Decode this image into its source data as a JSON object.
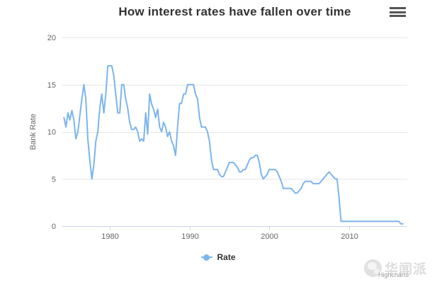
{
  "chart": {
    "title": "How interest rates have fallen over time",
    "legend_label": "Rate",
    "credits": "Highcharts",
    "menu_icon": "hamburger-icon",
    "colors": {
      "series": "#7cb5ec",
      "grid": "#e6e6e6",
      "axis_line": "#ccd6eb",
      "tick_label": "#666666",
      "axis_title": "#666666",
      "title_text": "#333333",
      "legend_text": "#333333",
      "credits_text": "#999999",
      "menu_icon_color": "#555555",
      "background": "#ffffff"
    }
  },
  "watermark": {
    "text": "华闻派"
  },
  "chart_data": {
    "type": "line",
    "title": "How interest rates have fallen over time",
    "xlabel": "",
    "ylabel": "Bank Rate",
    "series_name": "Rate",
    "legend_position": "bottom-center",
    "grid": true,
    "xlim": [
      1974.05,
      2017.3
    ],
    "ylim": [
      0,
      20
    ],
    "x_ticks": [
      1980,
      1990,
      2000,
      2010
    ],
    "y_ticks": [
      0,
      5,
      10,
      15,
      20
    ],
    "points": [
      [
        1974.25,
        11.5
      ],
      [
        1974.5,
        10.5
      ],
      [
        1974.75,
        12
      ],
      [
        1975,
        11.25
      ],
      [
        1975.25,
        12.25
      ],
      [
        1975.5,
        11.25
      ],
      [
        1975.75,
        9.25
      ],
      [
        1976,
        10
      ],
      [
        1976.25,
        11.75
      ],
      [
        1976.5,
        13.5
      ],
      [
        1976.75,
        15
      ],
      [
        1977,
        13.5
      ],
      [
        1977.25,
        9.25
      ],
      [
        1977.5,
        7
      ],
      [
        1977.75,
        5
      ],
      [
        1978,
        6.5
      ],
      [
        1978.25,
        9
      ],
      [
        1978.5,
        10
      ],
      [
        1978.75,
        12.5
      ],
      [
        1979,
        14
      ],
      [
        1979.25,
        12
      ],
      [
        1979.5,
        14
      ],
      [
        1979.75,
        17
      ],
      [
        1980,
        17
      ],
      [
        1980.25,
        17
      ],
      [
        1980.5,
        16
      ],
      [
        1980.75,
        14
      ],
      [
        1981,
        12
      ],
      [
        1981.25,
        12
      ],
      [
        1981.5,
        15
      ],
      [
        1981.75,
        15
      ],
      [
        1982,
        13.5
      ],
      [
        1982.25,
        12.5
      ],
      [
        1982.5,
        11
      ],
      [
        1982.75,
        10.25
      ],
      [
        1983,
        10.25
      ],
      [
        1983.25,
        10.5
      ],
      [
        1983.5,
        10
      ],
      [
        1983.75,
        9
      ],
      [
        1984,
        9.25
      ],
      [
        1984.25,
        9
      ],
      [
        1984.5,
        12
      ],
      [
        1984.75,
        9.75
      ],
      [
        1985,
        14
      ],
      [
        1985.25,
        12.9
      ],
      [
        1985.5,
        12.4
      ],
      [
        1985.75,
        11.5
      ],
      [
        1986,
        12.4
      ],
      [
        1986.25,
        10.5
      ],
      [
        1986.5,
        10
      ],
      [
        1986.75,
        11
      ],
      [
        1987,
        10.5
      ],
      [
        1987.25,
        9.5
      ],
      [
        1987.5,
        10
      ],
      [
        1987.75,
        9
      ],
      [
        1988,
        8.5
      ],
      [
        1988.25,
        7.5
      ],
      [
        1988.5,
        10.5
      ],
      [
        1988.75,
        13
      ],
      [
        1989,
        13
      ],
      [
        1989.25,
        14
      ],
      [
        1989.5,
        14
      ],
      [
        1989.75,
        15
      ],
      [
        1990,
        15
      ],
      [
        1990.25,
        15
      ],
      [
        1990.5,
        15
      ],
      [
        1990.75,
        14
      ],
      [
        1991,
        13.5
      ],
      [
        1991.25,
        11.5
      ],
      [
        1991.5,
        10.5
      ],
      [
        1991.75,
        10.5
      ],
      [
        1992,
        10.5
      ],
      [
        1992.25,
        10
      ],
      [
        1992.5,
        9
      ],
      [
        1992.75,
        7
      ],
      [
        1993,
        6
      ],
      [
        1993.25,
        6
      ],
      [
        1993.5,
        6
      ],
      [
        1993.75,
        5.5
      ],
      [
        1994,
        5.25
      ],
      [
        1994.25,
        5.25
      ],
      [
        1994.5,
        5.75
      ],
      [
        1994.75,
        6.25
      ],
      [
        1995,
        6.75
      ],
      [
        1995.25,
        6.75
      ],
      [
        1995.5,
        6.75
      ],
      [
        1995.75,
        6.5
      ],
      [
        1996,
        6.25
      ],
      [
        1996.25,
        5.75
      ],
      [
        1996.5,
        5.75
      ],
      [
        1996.75,
        6
      ],
      [
        1997,
        6
      ],
      [
        1997.25,
        6.5
      ],
      [
        1997.5,
        7
      ],
      [
        1997.75,
        7.25
      ],
      [
        1998,
        7.25
      ],
      [
        1998.25,
        7.5
      ],
      [
        1998.5,
        7.5
      ],
      [
        1998.75,
        6.75
      ],
      [
        1999,
        5.5
      ],
      [
        1999.25,
        5
      ],
      [
        1999.5,
        5.25
      ],
      [
        1999.75,
        5.5
      ],
      [
        2000,
        6
      ],
      [
        2000.25,
        6
      ],
      [
        2000.5,
        6
      ],
      [
        2000.75,
        6
      ],
      [
        2001,
        5.75
      ],
      [
        2001.25,
        5.25
      ],
      [
        2001.5,
        4.75
      ],
      [
        2001.75,
        4
      ],
      [
        2002,
        4
      ],
      [
        2002.25,
        4
      ],
      [
        2002.5,
        4
      ],
      [
        2002.75,
        4
      ],
      [
        2003,
        3.75
      ],
      [
        2003.25,
        3.5
      ],
      [
        2003.5,
        3.5
      ],
      [
        2003.75,
        3.75
      ],
      [
        2004,
        4
      ],
      [
        2004.25,
        4.5
      ],
      [
        2004.5,
        4.75
      ],
      [
        2004.75,
        4.75
      ],
      [
        2005,
        4.75
      ],
      [
        2005.25,
        4.75
      ],
      [
        2005.5,
        4.5
      ],
      [
        2005.75,
        4.5
      ],
      [
        2006,
        4.5
      ],
      [
        2006.25,
        4.5
      ],
      [
        2006.5,
        4.75
      ],
      [
        2006.75,
        5
      ],
      [
        2007,
        5.25
      ],
      [
        2007.25,
        5.5
      ],
      [
        2007.5,
        5.75
      ],
      [
        2007.75,
        5.5
      ],
      [
        2008,
        5.25
      ],
      [
        2008.25,
        5
      ],
      [
        2008.5,
        5
      ],
      [
        2008.75,
        3
      ],
      [
        2009,
        0.5
      ],
      [
        2009.25,
        0.5
      ],
      [
        2009.5,
        0.5
      ],
      [
        2009.75,
        0.5
      ],
      [
        2010,
        0.5
      ],
      [
        2010.25,
        0.5
      ],
      [
        2010.5,
        0.5
      ],
      [
        2010.75,
        0.5
      ],
      [
        2011,
        0.5
      ],
      [
        2011.25,
        0.5
      ],
      [
        2011.5,
        0.5
      ],
      [
        2011.75,
        0.5
      ],
      [
        2012,
        0.5
      ],
      [
        2012.25,
        0.5
      ],
      [
        2012.5,
        0.5
      ],
      [
        2012.75,
        0.5
      ],
      [
        2013,
        0.5
      ],
      [
        2013.25,
        0.5
      ],
      [
        2013.5,
        0.5
      ],
      [
        2013.75,
        0.5
      ],
      [
        2014,
        0.5
      ],
      [
        2014.25,
        0.5
      ],
      [
        2014.5,
        0.5
      ],
      [
        2014.75,
        0.5
      ],
      [
        2015,
        0.5
      ],
      [
        2015.25,
        0.5
      ],
      [
        2015.5,
        0.5
      ],
      [
        2015.75,
        0.5
      ],
      [
        2016,
        0.5
      ],
      [
        2016.25,
        0.5
      ],
      [
        2016.5,
        0.25
      ],
      [
        2016.75,
        0.25
      ]
    ]
  }
}
